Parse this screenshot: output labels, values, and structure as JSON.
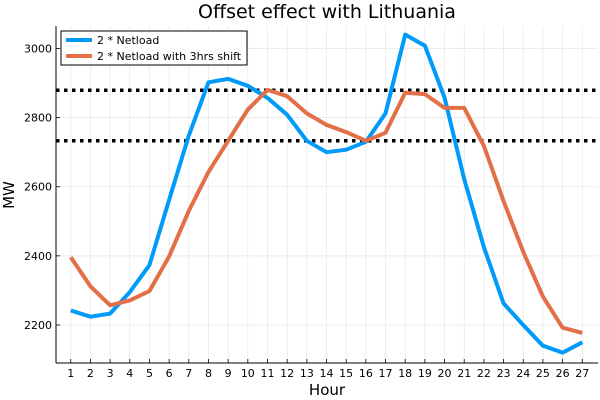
{
  "chart_data": {
    "type": "line",
    "title": "Offset effect with Lithuania",
    "xlabel": "Hour",
    "ylabel": "MW",
    "x": [
      1,
      2,
      3,
      4,
      5,
      6,
      7,
      8,
      9,
      10,
      11,
      12,
      13,
      14,
      15,
      16,
      17,
      18,
      19,
      20,
      21,
      22,
      23,
      24,
      25,
      26,
      27
    ],
    "xlim": [
      0.25,
      27.8
    ],
    "ylim": [
      2090,
      3065
    ],
    "yticks": [
      2200,
      2400,
      2600,
      2800,
      3000
    ],
    "grid": true,
    "legend_position": "top-left",
    "series": [
      {
        "name": "2 * Netload",
        "color": "#009af9",
        "values": [
          2242,
          2224,
          2233,
          2295,
          2373,
          2562,
          2748,
          2902,
          2912,
          2892,
          2857,
          2808,
          2733,
          2700,
          2707,
          2730,
          2812,
          3040,
          3008,
          2858,
          2622,
          2425,
          2262,
          2200,
          2140,
          2120,
          2150
        ]
      },
      {
        "name": "2 * Netload with 3hrs shift",
        "color": "#e26f46",
        "values": [
          2396,
          2312,
          2257,
          2271,
          2298,
          2398,
          2530,
          2643,
          2733,
          2823,
          2880,
          2862,
          2812,
          2779,
          2758,
          2733,
          2756,
          2872,
          2868,
          2828,
          2828,
          2718,
          2558,
          2412,
          2282,
          2192,
          2177
        ]
      }
    ],
    "reference_lines": [
      {
        "y": 2879,
        "style": "dotted",
        "color": "#000000"
      },
      {
        "y": 2733,
        "style": "dotted",
        "color": "#000000"
      }
    ]
  }
}
